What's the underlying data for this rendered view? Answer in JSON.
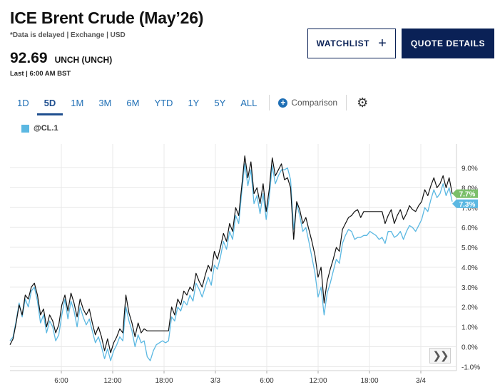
{
  "header": {
    "title": "ICE Brent Crude (May’26)",
    "subtitle": "*Data is delayed | Exchange | USD",
    "price": "92.69",
    "change": "UNCH (UNCH)",
    "last_update": "Last | 6:00 AM BST"
  },
  "buttons": {
    "watchlist_label": "WATCHLIST",
    "watchlist_plus": "+",
    "quote_details_label": "QUOTE DETAILS"
  },
  "tabs": [
    {
      "label": "1D",
      "active": false
    },
    {
      "label": "5D",
      "active": true
    },
    {
      "label": "1M",
      "active": false
    },
    {
      "label": "3M",
      "active": false
    },
    {
      "label": "6M",
      "active": false
    },
    {
      "label": "YTD",
      "active": false
    },
    {
      "label": "1Y",
      "active": false
    },
    {
      "label": "5Y",
      "active": false
    },
    {
      "label": "ALL",
      "active": false
    }
  ],
  "comparison_label": "Comparison",
  "legend": {
    "label": "@CL.1",
    "color": "#5bb8e2"
  },
  "colors": {
    "primary_series": "#111111",
    "comparison_series": "#5bb8e2",
    "brand_navy": "#0a2156",
    "tab_blue": "#1f6fb5",
    "badge_green": "#7bbf6a",
    "badge_blue": "#5bb8e2"
  },
  "icons": {
    "settings": "gear-icon",
    "scroll": "double-chevron-right-icon",
    "comparison": "plus-circle-icon"
  },
  "chart_data": {
    "type": "line",
    "x_tick_labels": [
      "6:00",
      "12:00",
      "18:00",
      "3/3",
      "6:00",
      "12:00",
      "18:00",
      "3/4"
    ],
    "y_tick_labels": [
      "9.0%",
      "8.0%",
      "7.0%",
      "6.0%",
      "5.0%",
      "4.0%",
      "3.0%",
      "2.0%",
      "1.0%",
      "0.0%",
      "-1.0%"
    ],
    "ylim": [
      -1.2,
      10.2
    ],
    "grid": true,
    "end_badges": [
      {
        "label": "7.7%",
        "value": 7.7,
        "color": "#7bbf6a"
      },
      {
        "label": "7.3%",
        "value": 7.3,
        "color": "#5bb8e2"
      }
    ],
    "series": [
      {
        "color": "#111111",
        "values": [
          0.1,
          0.4,
          1.2,
          2.1,
          1.6,
          2.6,
          2.4,
          3.0,
          3.2,
          2.6,
          1.6,
          1.9,
          1.0,
          1.6,
          1.3,
          0.7,
          1.1,
          2.1,
          2.6,
          1.8,
          2.7,
          2.2,
          1.5,
          2.4,
          1.9,
          1.6,
          1.9,
          1.2,
          0.6,
          1.0,
          0.5,
          -0.2,
          0.4,
          -0.3,
          0.2,
          0.5,
          0.9,
          0.7,
          2.6,
          1.7,
          1.2,
          0.5,
          1.2,
          0.7,
          0.9,
          0.8,
          0.8,
          0.8,
          0.8,
          0.8,
          0.8,
          0.8,
          0.8,
          2.0,
          1.6,
          2.4,
          2.1,
          2.8,
          2.6,
          3.0,
          2.8,
          3.7,
          3.3,
          3.0,
          3.6,
          4.1,
          3.8,
          4.8,
          4.4,
          5.0,
          5.7,
          5.3,
          6.2,
          5.8,
          7.0,
          6.6,
          8.1,
          9.6,
          8.5,
          9.3,
          7.7,
          8.0,
          7.2,
          8.2,
          6.8,
          7.9,
          9.5,
          8.6,
          8.9,
          9.2,
          8.4,
          8.5,
          8.0,
          5.4,
          7.3,
          6.9,
          6.2,
          6.5,
          5.9,
          5.3,
          4.6,
          3.5,
          4.0,
          2.2,
          3.3,
          3.9,
          4.4,
          5.0,
          4.8,
          5.9,
          6.2,
          6.5,
          6.6,
          6.8,
          6.9,
          6.5,
          6.8,
          6.8,
          6.8,
          6.8,
          6.8,
          6.8,
          6.8,
          6.2,
          6.6,
          6.9,
          6.2,
          6.6,
          6.9,
          6.4,
          6.7,
          7.1,
          6.9,
          6.8,
          7.1,
          7.3,
          7.9,
          7.6,
          8.1,
          8.5,
          8.0,
          8.2,
          8.6,
          8.0,
          8.5,
          7.7
        ]
      },
      {
        "color": "#5bb8e2",
        "values": [
          0.3,
          0.5,
          1.3,
          2.2,
          1.5,
          2.4,
          2.0,
          2.8,
          3.0,
          2.3,
          1.2,
          1.6,
          0.7,
          1.3,
          1.0,
          0.3,
          0.6,
          1.6,
          2.4,
          1.4,
          2.3,
          1.8,
          1.0,
          2.0,
          1.5,
          1.1,
          1.4,
          0.8,
          0.2,
          0.5,
          0.0,
          -0.6,
          -0.1,
          -0.7,
          -0.2,
          0.1,
          0.5,
          0.3,
          2.0,
          1.3,
          0.8,
          0.0,
          0.6,
          0.2,
          0.3,
          -0.5,
          -0.7,
          -0.2,
          0.1,
          0.2,
          0.3,
          0.2,
          0.3,
          1.5,
          1.3,
          2.0,
          1.8,
          2.3,
          2.1,
          2.6,
          2.3,
          3.2,
          2.9,
          2.5,
          3.0,
          3.5,
          3.1,
          4.1,
          3.9,
          4.5,
          5.3,
          4.9,
          5.8,
          5.4,
          6.6,
          6.2,
          7.8,
          9.2,
          8.1,
          8.9,
          7.2,
          7.6,
          6.7,
          7.7,
          6.4,
          7.5,
          9.1,
          8.2,
          8.6,
          8.9,
          8.9,
          9.0,
          8.4,
          5.9,
          7.2,
          6.6,
          5.8,
          6.0,
          5.3,
          4.5,
          3.7,
          2.5,
          3.0,
          1.6,
          2.7,
          3.2,
          3.8,
          4.4,
          4.2,
          5.2,
          5.6,
          5.9,
          5.8,
          5.4,
          5.5,
          5.5,
          5.6,
          5.6,
          5.8,
          5.7,
          5.6,
          5.4,
          5.5,
          5.2,
          5.8,
          5.8,
          5.5,
          5.6,
          5.8,
          5.4,
          5.8,
          6.1,
          6.0,
          5.8,
          6.1,
          6.4,
          7.0,
          6.8,
          7.4,
          7.9,
          7.5,
          7.7,
          8.2,
          7.6,
          8.0,
          7.3
        ]
      }
    ]
  }
}
